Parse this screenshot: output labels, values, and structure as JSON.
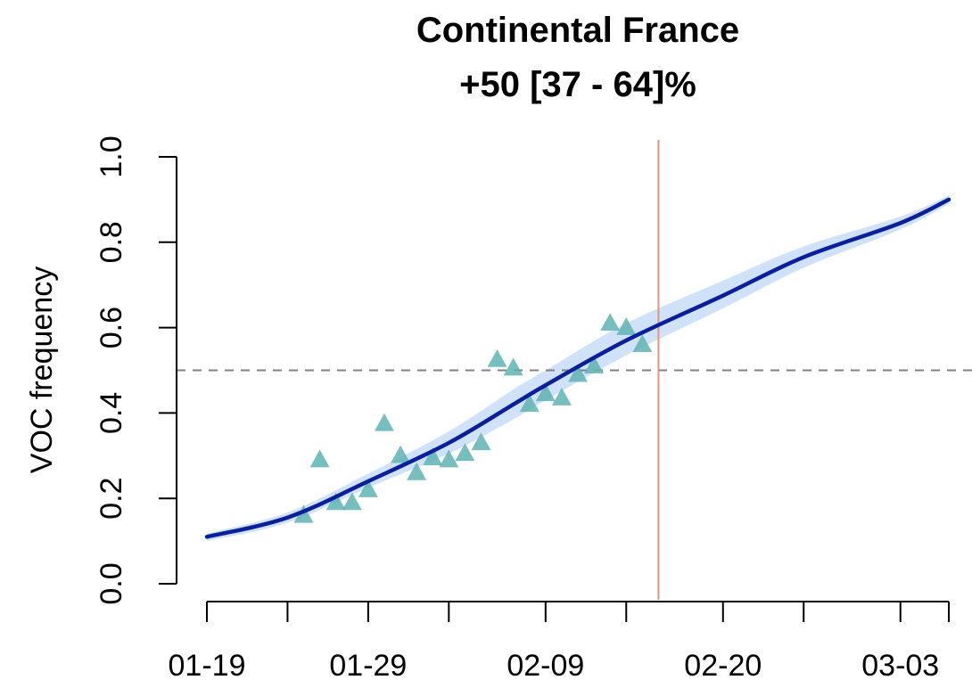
{
  "chart_data": {
    "type": "line",
    "title": "Continental France",
    "subtitle": "+50 [37 - 64]%",
    "xlabel": "",
    "ylabel": "VOC frequency",
    "x_axis": {
      "type": "date",
      "range": [
        "01-19",
        "03-06"
      ],
      "tick_labels": [
        "01-19",
        "01-29",
        "02-09",
        "02-20",
        "03-03"
      ],
      "tick_dates": [
        "01-19",
        "01-24",
        "01-29",
        "02-03",
        "02-09",
        "02-14",
        "02-20",
        "02-25",
        "03-03",
        "03-06"
      ]
    },
    "y_axis": {
      "range": [
        0,
        1
      ],
      "ticks": [
        0.0,
        0.2,
        0.4,
        0.6,
        0.8,
        1.0
      ],
      "tick_labels": [
        "0.0",
        "0.2",
        "0.4",
        "0.6",
        "0.8",
        "1.0"
      ]
    },
    "reference_lines": {
      "horizontal": {
        "y": 0.5,
        "style": "dashed",
        "color": "#808080"
      },
      "vertical": {
        "x": "02-16",
        "color": "#e8927c"
      }
    },
    "fit": {
      "color": "#0a1f9c",
      "band_color": "#cfe2fa",
      "points": [
        {
          "x": "01-19",
          "y": 0.11,
          "lo": 0.1,
          "hi": 0.118
        },
        {
          "x": "01-24",
          "y": 0.155,
          "lo": 0.143,
          "hi": 0.167
        },
        {
          "x": "01-29",
          "y": 0.24,
          "lo": 0.225,
          "hi": 0.258
        },
        {
          "x": "02-03",
          "y": 0.33,
          "lo": 0.305,
          "hi": 0.357
        },
        {
          "x": "02-07",
          "y": 0.42,
          "lo": 0.385,
          "hi": 0.455
        },
        {
          "x": "02-09",
          "y": 0.465,
          "lo": 0.43,
          "hi": 0.5
        },
        {
          "x": "02-14",
          "y": 0.57,
          "lo": 0.535,
          "hi": 0.61
        },
        {
          "x": "02-20",
          "y": 0.675,
          "lo": 0.645,
          "hi": 0.71
        },
        {
          "x": "02-25",
          "y": 0.765,
          "lo": 0.74,
          "hi": 0.79
        },
        {
          "x": "03-03",
          "y": 0.845,
          "lo": 0.83,
          "hi": 0.86
        },
        {
          "x": "03-06",
          "y": 0.9,
          "lo": 0.89,
          "hi": 0.91
        }
      ]
    },
    "observations": {
      "marker": "triangle",
      "color": "#5fb3b3",
      "points": [
        {
          "x": "01-25",
          "y": 0.16
        },
        {
          "x": "01-26",
          "y": 0.29
        },
        {
          "x": "01-27",
          "y": 0.19
        },
        {
          "x": "01-28",
          "y": 0.19
        },
        {
          "x": "01-29",
          "y": 0.22
        },
        {
          "x": "01-30",
          "y": 0.375
        },
        {
          "x": "01-31",
          "y": 0.3
        },
        {
          "x": "02-01",
          "y": 0.26
        },
        {
          "x": "02-02",
          "y": 0.295
        },
        {
          "x": "02-03",
          "y": 0.29
        },
        {
          "x": "02-04",
          "y": 0.305
        },
        {
          "x": "02-05",
          "y": 0.33
        },
        {
          "x": "02-06",
          "y": 0.525
        },
        {
          "x": "02-07",
          "y": 0.505
        },
        {
          "x": "02-08",
          "y": 0.42
        },
        {
          "x": "02-09",
          "y": 0.445
        },
        {
          "x": "02-10",
          "y": 0.435
        },
        {
          "x": "02-11",
          "y": 0.49
        },
        {
          "x": "02-12",
          "y": 0.51
        },
        {
          "x": "02-13",
          "y": 0.61
        },
        {
          "x": "02-14",
          "y": 0.6
        },
        {
          "x": "02-15",
          "y": 0.56
        }
      ]
    }
  }
}
